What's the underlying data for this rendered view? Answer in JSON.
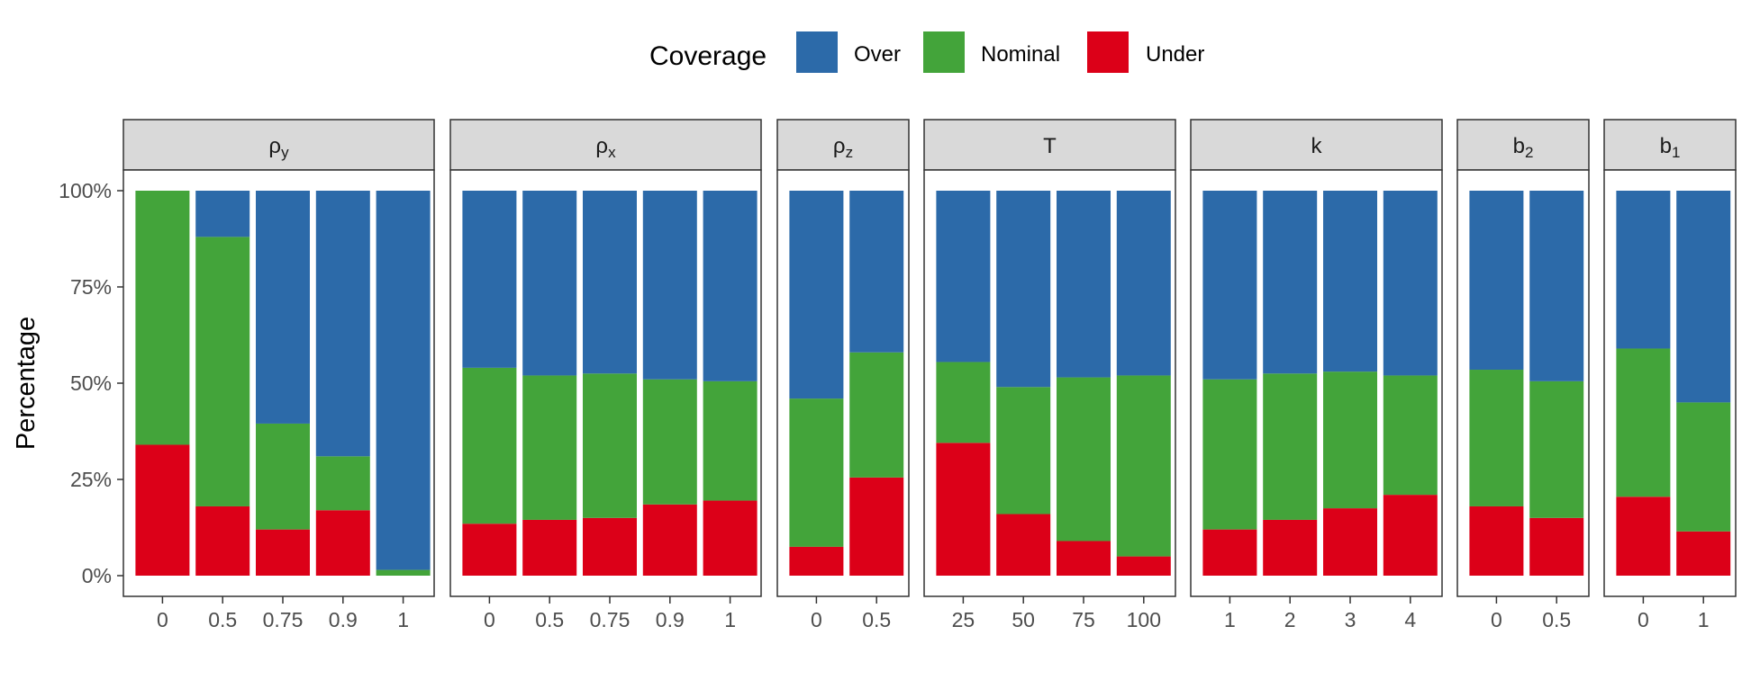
{
  "chart_data": {
    "type": "bar",
    "stacked": true,
    "legend": {
      "title": "Coverage",
      "position": "top",
      "entries": [
        {
          "key": "over",
          "label": "Over",
          "color": "#2C6AA9"
        },
        {
          "key": "nominal",
          "label": "Nominal",
          "color": "#43A43A"
        },
        {
          "key": "under",
          "label": "Under",
          "color": "#DC0018"
        }
      ]
    },
    "ylabel": "Percentage",
    "ylim": [
      0,
      100
    ],
    "yticks": [
      0,
      25,
      50,
      75,
      100
    ],
    "ytick_labels": [
      "0%",
      "25%",
      "50%",
      "75%",
      "100%"
    ],
    "grid": false,
    "panels": [
      {
        "strip": "ρ",
        "sub": "y",
        "categories": [
          "0",
          "0.5",
          "0.75",
          "0.9",
          "1"
        ],
        "under": [
          34,
          18,
          12,
          17,
          0
        ],
        "nominal": [
          66,
          70,
          27.5,
          14,
          1.5
        ],
        "over": [
          0,
          12,
          60.5,
          69,
          98.5
        ]
      },
      {
        "strip": "ρ",
        "sub": "x",
        "categories": [
          "0",
          "0.5",
          "0.75",
          "0.9",
          "1"
        ],
        "under": [
          13.5,
          14.5,
          15,
          18.5,
          19.5
        ],
        "nominal": [
          40.5,
          37.5,
          37.5,
          32.5,
          31
        ],
        "over": [
          46,
          48,
          47.5,
          49,
          49.5
        ]
      },
      {
        "strip": "ρ",
        "sub": "z",
        "categories": [
          "0",
          "0.5"
        ],
        "under": [
          7.5,
          25.5
        ],
        "nominal": [
          38.5,
          32.5
        ],
        "over": [
          54,
          42
        ]
      },
      {
        "strip": "T",
        "sub": "",
        "categories": [
          "25",
          "50",
          "75",
          "100"
        ],
        "under": [
          34.5,
          16,
          9,
          5
        ],
        "nominal": [
          21,
          33,
          42.5,
          47
        ],
        "over": [
          44.5,
          51,
          48.5,
          48
        ]
      },
      {
        "strip": "k",
        "sub": "",
        "categories": [
          "1",
          "2",
          "3",
          "4"
        ],
        "under": [
          12,
          14.5,
          17.5,
          21
        ],
        "nominal": [
          39,
          38,
          35.5,
          31
        ],
        "over": [
          49,
          47.5,
          47,
          48
        ]
      },
      {
        "strip": "b",
        "sub": "2",
        "sub_style": "subscript",
        "categories": [
          "0",
          "0.5"
        ],
        "under": [
          18,
          15
        ],
        "nominal": [
          35.5,
          35.5
        ],
        "over": [
          46.5,
          49.5
        ]
      },
      {
        "strip": "b",
        "sub": "1",
        "sub_style": "subscript",
        "categories": [
          "0",
          "1"
        ],
        "under": [
          20.5,
          11.5
        ],
        "nominal": [
          38.5,
          33.5
        ],
        "over": [
          41,
          55
        ]
      }
    ]
  }
}
